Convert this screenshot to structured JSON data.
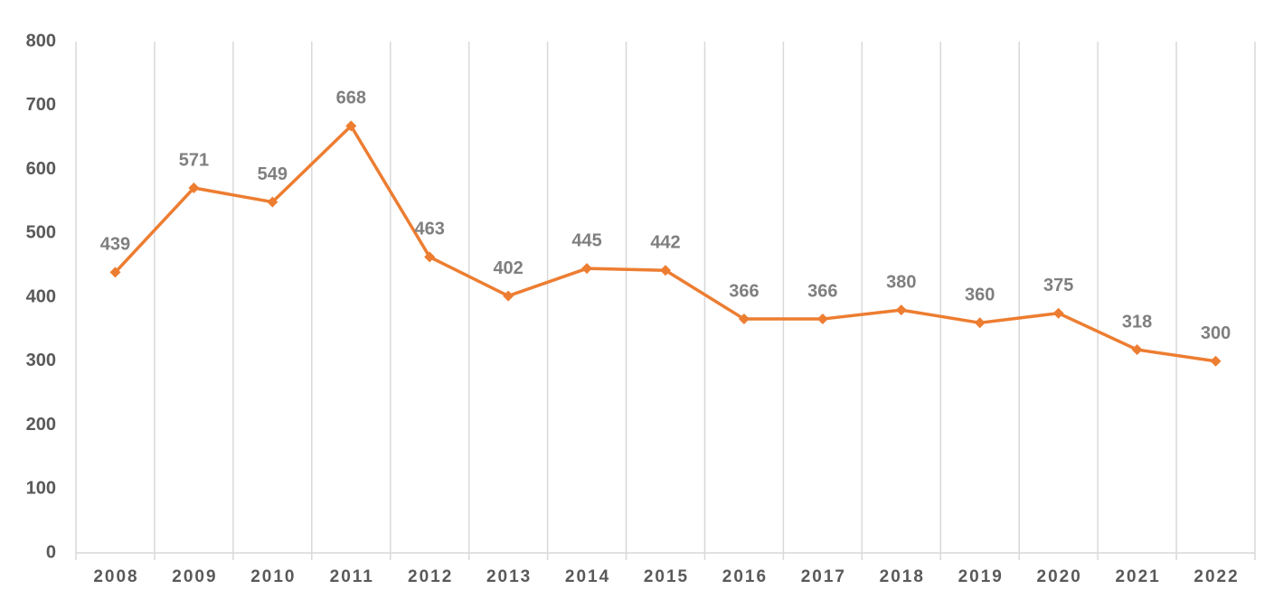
{
  "chart_data": {
    "type": "line",
    "categories": [
      "2008",
      "2009",
      "2010",
      "2011",
      "2012",
      "2013",
      "2014",
      "2015",
      "2016",
      "2017",
      "2018",
      "2019",
      "2020",
      "2021",
      "2022"
    ],
    "values": [
      439,
      571,
      549,
      668,
      463,
      402,
      445,
      442,
      366,
      366,
      380,
      360,
      375,
      318,
      300
    ],
    "color": "#ED7D31",
    "ylim": [
      0,
      800
    ],
    "yticks": [
      0,
      100,
      200,
      300,
      400,
      500,
      600,
      700,
      800
    ]
  }
}
